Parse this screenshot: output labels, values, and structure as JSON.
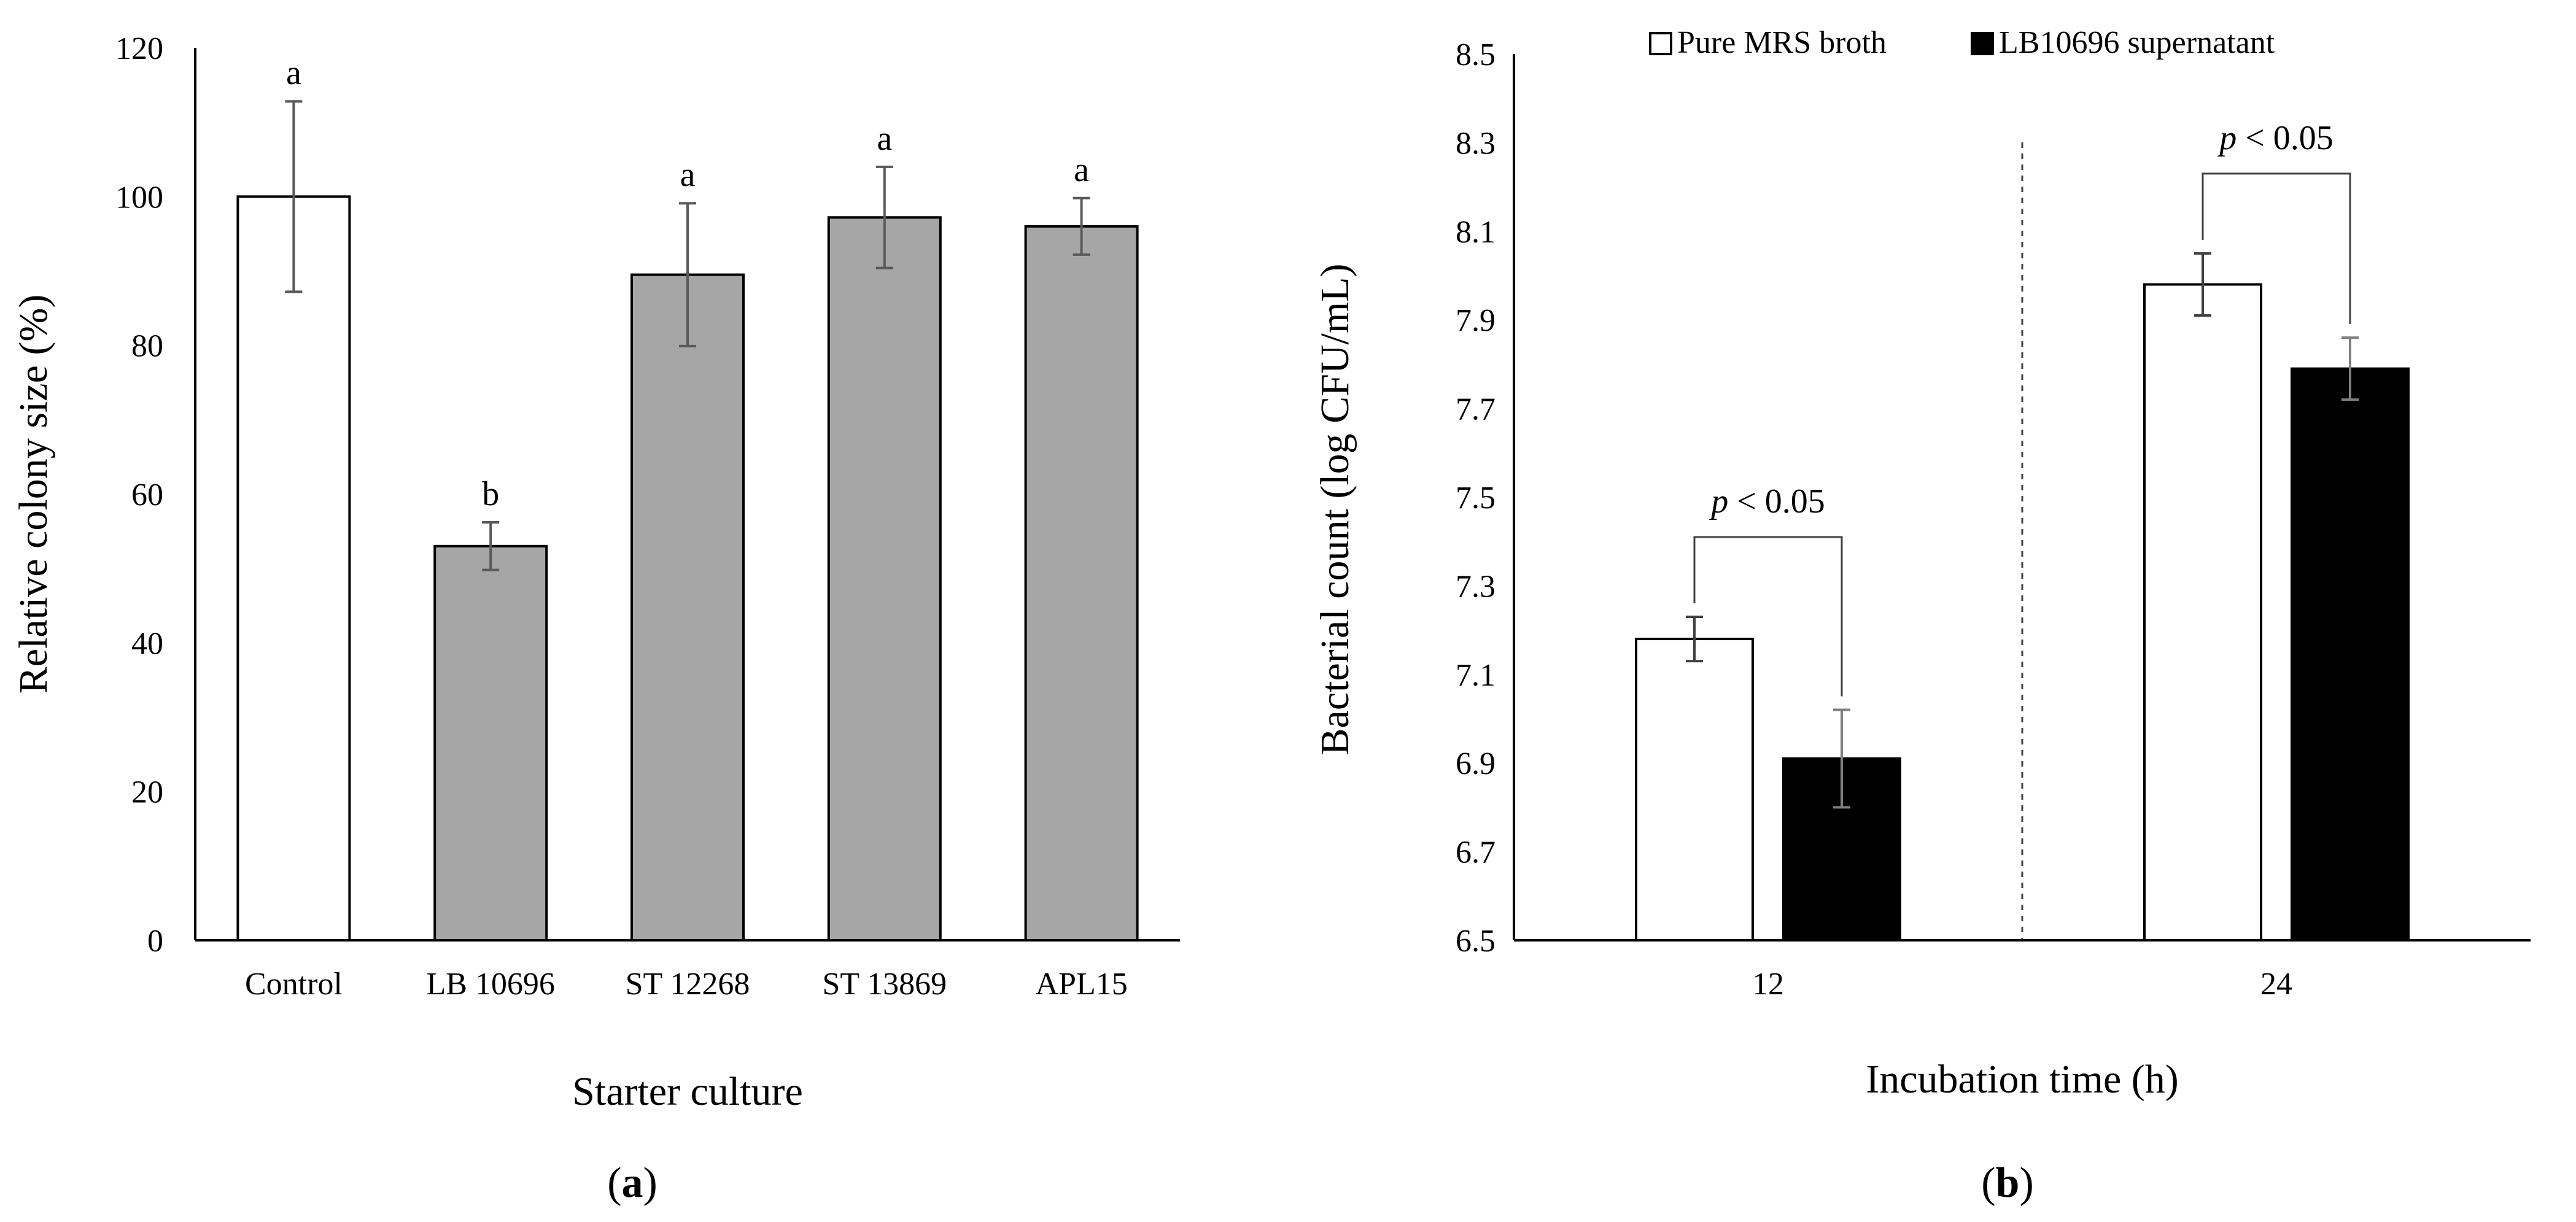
{
  "chart_data": [
    {
      "type": "bar",
      "panel_label": "(a)",
      "xlabel": "Starter culture",
      "ylabel": "Relative colony size (%)",
      "ylim": [
        0,
        120
      ],
      "yticks": [
        "0",
        "20",
        "40",
        "60",
        "80",
        "100",
        "120"
      ],
      "categories": [
        "Control",
        "LB 10696",
        "ST 12268",
        "ST 13869",
        "APL15"
      ],
      "values": [
        100,
        53,
        89.5,
        97.2,
        96
      ],
      "errors": [
        12.8,
        3.2,
        9.6,
        6.8,
        3.8
      ],
      "letters": [
        "a",
        "b",
        "a",
        "a",
        "a"
      ],
      "colors": [
        "#ffffff",
        "#a6a6a6",
        "#a6a6a6",
        "#a6a6a6",
        "#a6a6a6"
      ]
    },
    {
      "type": "bar",
      "panel_label": "(b)",
      "xlabel": "Incubation time (h)",
      "ylabel": "Bacterial count (log CFU/mL)",
      "ylim": [
        6.5,
        8.5
      ],
      "yticks": [
        "6.5",
        "6.7",
        "6.9",
        "7.1",
        "7.3",
        "7.5",
        "7.7",
        "7.9",
        "8.1",
        "8.3",
        "8.5"
      ],
      "categories": [
        "12",
        "24"
      ],
      "series": [
        {
          "name": "Pure MRS broth",
          "color": "#ffffff",
          "values": [
            7.18,
            7.98
          ],
          "errors": [
            0.05,
            0.07
          ]
        },
        {
          "name": "LB10696 supernatant",
          "color": "#000000",
          "values": [
            6.91,
            7.79
          ],
          "errors": [
            0.11,
            0.07
          ]
        }
      ],
      "annotation": {
        "p": "p",
        "rest": " < 0.05"
      },
      "legend_position": "top"
    }
  ]
}
